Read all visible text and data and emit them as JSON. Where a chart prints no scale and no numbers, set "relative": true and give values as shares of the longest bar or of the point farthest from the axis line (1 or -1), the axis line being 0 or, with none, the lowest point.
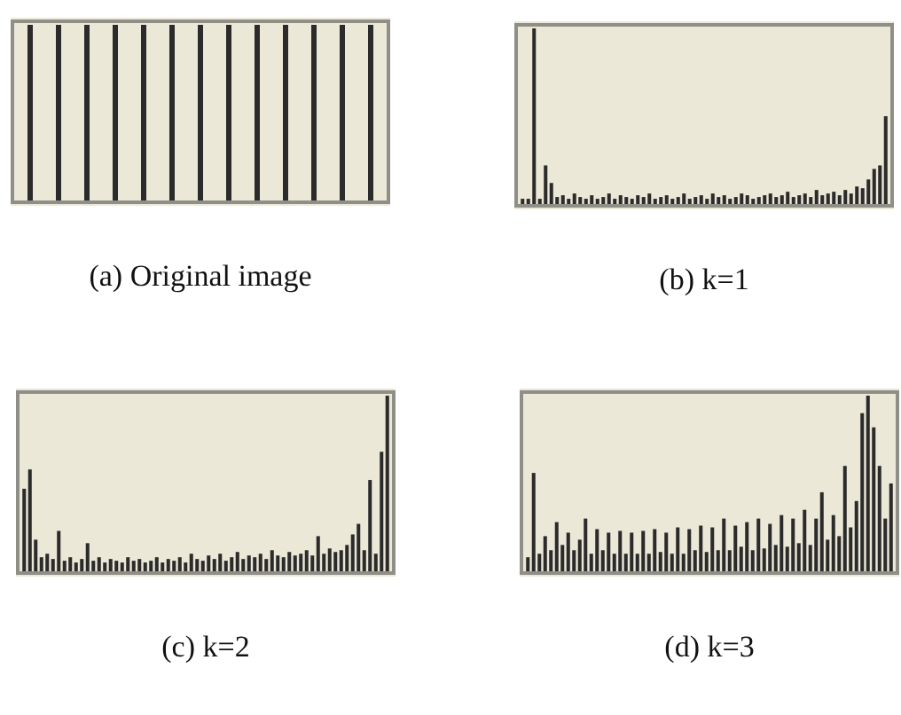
{
  "chart_data": [
    {
      "type": "bar",
      "title": "(a) Original image",
      "relative": true,
      "color": "#2b2b2b",
      "categories": [
        null,
        null,
        null,
        null,
        null,
        null,
        null,
        null,
        null,
        null,
        null,
        null,
        null
      ],
      "values": [
        1,
        1,
        1,
        1,
        1,
        1,
        1,
        1,
        1,
        1,
        1,
        1,
        1
      ]
    },
    {
      "type": "bar",
      "title": "(b) k=1",
      "relative": true,
      "color": "#2b2b2b",
      "categories": [
        null,
        null,
        null,
        null,
        null,
        null,
        null,
        null,
        null,
        null,
        null,
        null,
        null,
        null,
        null,
        null,
        null,
        null,
        null,
        null,
        null,
        null,
        null,
        null,
        null,
        null,
        null,
        null,
        null,
        null,
        null,
        null,
        null,
        null,
        null,
        null,
        null,
        null,
        null,
        null,
        null,
        null,
        null,
        null,
        null,
        null,
        null,
        null,
        null,
        null,
        null,
        null,
        null,
        null,
        null,
        null,
        null,
        null,
        null,
        null,
        null,
        null,
        null,
        null
      ],
      "values": [
        0.03,
        0.03,
        1,
        0.03,
        0.22,
        0.12,
        0.04,
        0.05,
        0.03,
        0.06,
        0.04,
        0.03,
        0.05,
        0.03,
        0.04,
        0.06,
        0.03,
        0.05,
        0.04,
        0.03,
        0.05,
        0.04,
        0.06,
        0.03,
        0.04,
        0.05,
        0.03,
        0.04,
        0.06,
        0.03,
        0.04,
        0.05,
        0.03,
        0.06,
        0.04,
        0.05,
        0.03,
        0.04,
        0.06,
        0.05,
        0.03,
        0.04,
        0.05,
        0.06,
        0.04,
        0.05,
        0.07,
        0.04,
        0.05,
        0.06,
        0.04,
        0.08,
        0.05,
        0.06,
        0.07,
        0.05,
        0.08,
        0.06,
        0.1,
        0.09,
        0.14,
        0.2,
        0.22,
        0.5
      ]
    },
    {
      "type": "bar",
      "title": "(c) k=2",
      "relative": true,
      "color": "#2b2b2b",
      "categories": [
        null,
        null,
        null,
        null,
        null,
        null,
        null,
        null,
        null,
        null,
        null,
        null,
        null,
        null,
        null,
        null,
        null,
        null,
        null,
        null,
        null,
        null,
        null,
        null,
        null,
        null,
        null,
        null,
        null,
        null,
        null,
        null,
        null,
        null,
        null,
        null,
        null,
        null,
        null,
        null,
        null,
        null,
        null,
        null,
        null,
        null,
        null,
        null,
        null,
        null,
        null,
        null,
        null,
        null,
        null,
        null,
        null,
        null,
        null,
        null,
        null,
        null,
        null,
        null
      ],
      "values": [
        0.47,
        0.58,
        0.18,
        0.08,
        0.1,
        0.07,
        0.23,
        0.06,
        0.08,
        0.05,
        0.07,
        0.16,
        0.06,
        0.08,
        0.05,
        0.07,
        0.06,
        0.05,
        0.08,
        0.06,
        0.07,
        0.05,
        0.06,
        0.08,
        0.05,
        0.07,
        0.06,
        0.08,
        0.05,
        0.1,
        0.07,
        0.06,
        0.09,
        0.07,
        0.1,
        0.06,
        0.08,
        0.11,
        0.07,
        0.09,
        0.08,
        0.1,
        0.07,
        0.12,
        0.09,
        0.08,
        0.11,
        0.09,
        0.1,
        0.12,
        0.09,
        0.2,
        0.1,
        0.13,
        0.11,
        0.12,
        0.15,
        0.21,
        0.27,
        0.12,
        0.52,
        0.1,
        0.68,
        1
      ]
    },
    {
      "type": "bar",
      "title": "(d) k=3",
      "relative": true,
      "color": "#2b2b2b",
      "categories": [
        null,
        null,
        null,
        null,
        null,
        null,
        null,
        null,
        null,
        null,
        null,
        null,
        null,
        null,
        null,
        null,
        null,
        null,
        null,
        null,
        null,
        null,
        null,
        null,
        null,
        null,
        null,
        null,
        null,
        null,
        null,
        null,
        null,
        null,
        null,
        null,
        null,
        null,
        null,
        null,
        null,
        null,
        null,
        null,
        null,
        null,
        null,
        null,
        null,
        null,
        null,
        null,
        null,
        null,
        null,
        null,
        null,
        null,
        null,
        null,
        null,
        null,
        null,
        null
      ],
      "values": [
        0.08,
        0.56,
        0.1,
        0.2,
        0.12,
        0.28,
        0.15,
        0.22,
        0.12,
        0.18,
        0.3,
        0.1,
        0.24,
        0.12,
        0.22,
        0.1,
        0.23,
        0.1,
        0.22,
        0.1,
        0.23,
        0.1,
        0.24,
        0.11,
        0.22,
        0.1,
        0.25,
        0.1,
        0.24,
        0.12,
        0.26,
        0.11,
        0.25,
        0.12,
        0.3,
        0.12,
        0.26,
        0.14,
        0.28,
        0.12,
        0.3,
        0.13,
        0.27,
        0.15,
        0.32,
        0.14,
        0.3,
        0.16,
        0.35,
        0.15,
        0.3,
        0.45,
        0.18,
        0.32,
        0.2,
        0.6,
        0.25,
        0.4,
        0.9,
        1,
        0.82,
        0.6,
        0.3,
        0.5
      ]
    }
  ]
}
